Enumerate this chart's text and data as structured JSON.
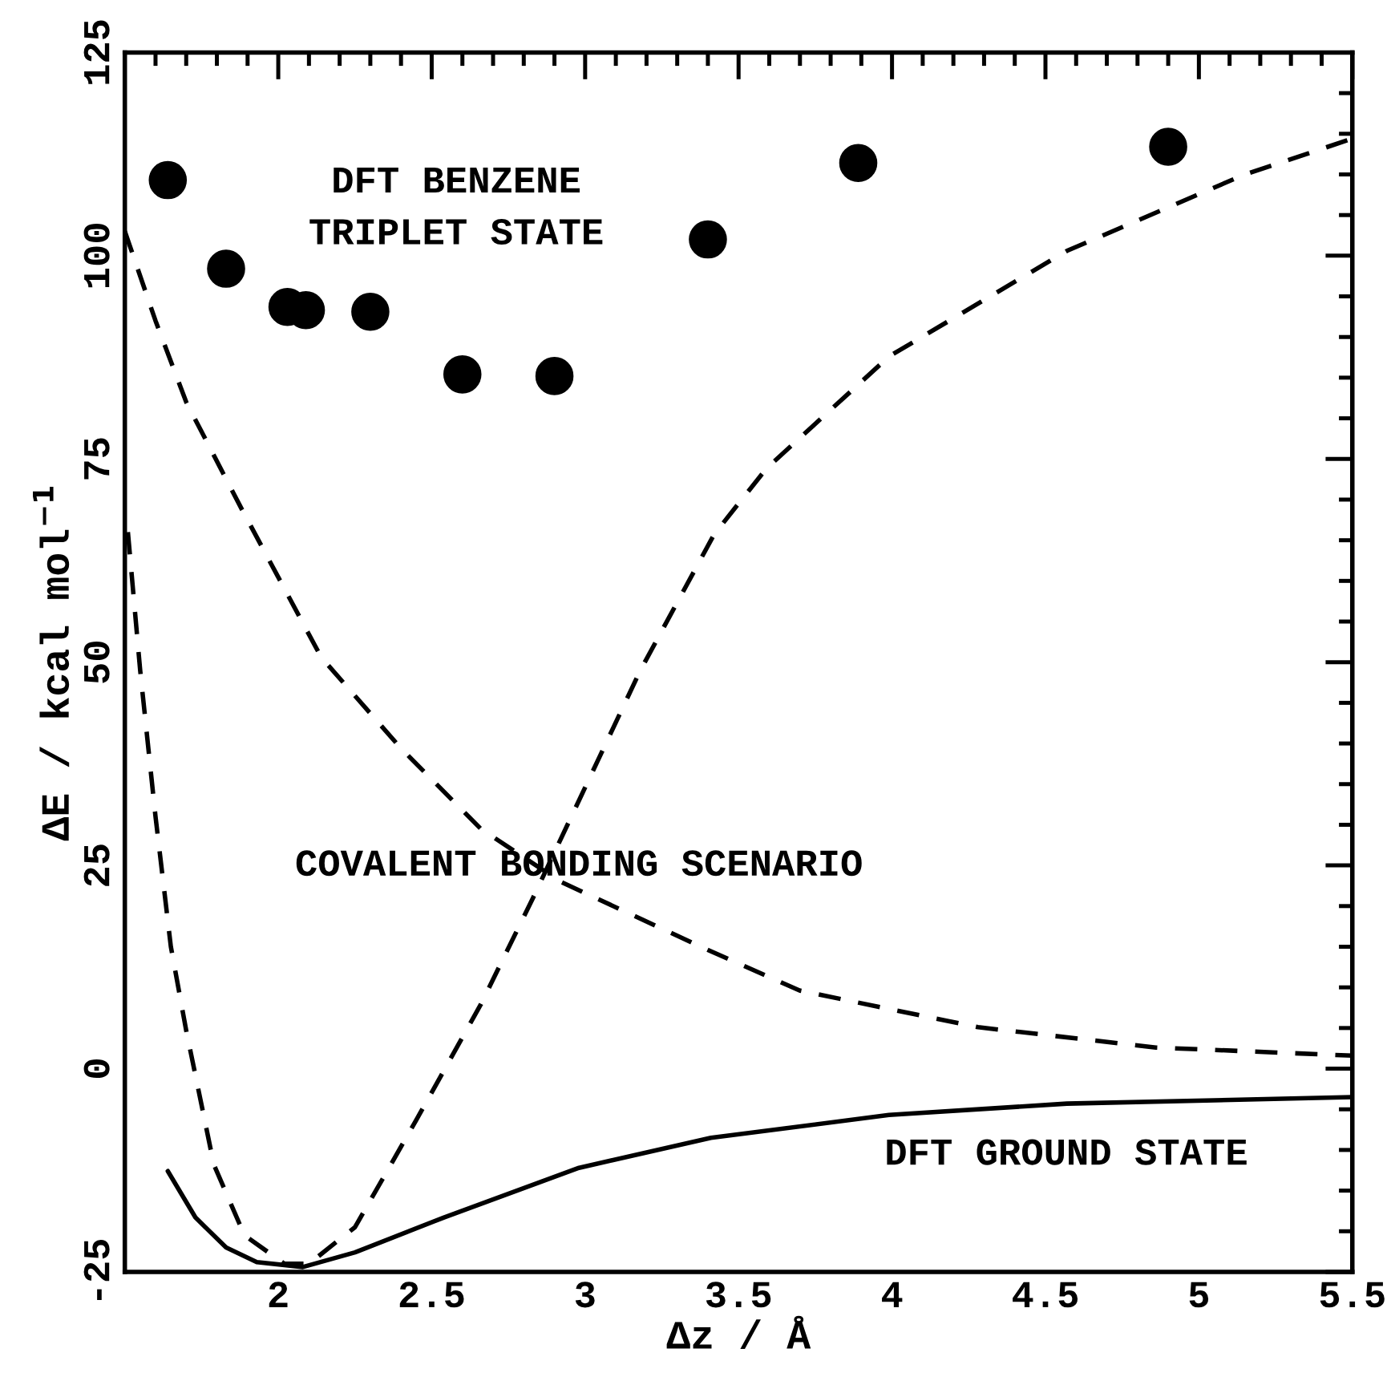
{
  "chart_data": {
    "type": "line",
    "xlabel": "Δz / Å",
    "ylabel": "ΔE / kcal mol$^{−1}$",
    "annotations": [
      "DFT BENZENE\nTRIPLET STATE",
      "COVALENT BONDING SCENARIO",
      "DFT GROUND STATE"
    ],
    "xlim": [
      1.5,
      5.5
    ],
    "ylim": [
      -25,
      125
    ],
    "xticks": [
      {
        "value": 1.6,
        "label": null
      },
      {
        "value": 1.7,
        "label": null
      },
      {
        "value": 1.8,
        "label": null
      },
      {
        "value": 1.9,
        "label": null
      },
      2,
      {
        "value": 2.1,
        "label": null
      },
      {
        "value": 2.2,
        "label": null
      },
      {
        "value": 2.3,
        "label": null
      },
      {
        "value": 2.4,
        "label": null
      },
      2.5,
      {
        "value": 2.6,
        "label": null
      },
      {
        "value": 2.7,
        "label": null
      },
      {
        "value": 2.8,
        "label": null
      },
      {
        "value": 2.9,
        "label": null
      },
      3,
      {
        "value": 3.1,
        "label": null
      },
      {
        "value": 3.2,
        "label": null
      },
      {
        "value": 3.3,
        "label": null
      },
      {
        "value": 3.4,
        "label": null
      },
      3.5,
      {
        "value": 3.6,
        "label": null
      },
      {
        "value": 3.7,
        "label": null
      },
      {
        "value": 3.8,
        "label": null
      },
      {
        "value": 3.9,
        "label": null
      },
      4,
      {
        "value": 4.1,
        "label": null
      },
      {
        "value": 4.2,
        "label": null
      },
      {
        "value": 4.3,
        "label": null
      },
      {
        "value": 4.4,
        "label": null
      },
      4.5,
      {
        "value": 4.6,
        "label": null
      },
      {
        "value": 4.7,
        "label": null
      },
      {
        "value": 4.8,
        "label": null
      },
      {
        "value": 4.9,
        "label": null
      },
      5,
      {
        "value": 5.1,
        "label": null
      },
      {
        "value": 5.2,
        "label": null
      },
      {
        "value": 5.3,
        "label": null
      },
      {
        "value": 5.4,
        "label": null
      },
      5.5
    ],
    "yticks": [
      -25,
      {
        "value": -20,
        "label": null
      },
      {
        "value": -15,
        "label": null
      },
      {
        "value": -10,
        "label": null
      },
      {
        "value": -5,
        "label": null
      },
      0,
      {
        "value": 5,
        "label": null
      },
      {
        "value": 10,
        "label": null
      },
      {
        "value": 15,
        "label": null
      },
      {
        "value": 20,
        "label": null
      },
      25,
      {
        "value": 30,
        "label": null
      },
      {
        "value": 35,
        "label": null
      },
      {
        "value": 40,
        "label": null
      },
      {
        "value": 45,
        "label": null
      },
      50,
      {
        "value": 55,
        "label": null
      },
      {
        "value": 60,
        "label": null
      },
      {
        "value": 65,
        "label": null
      },
      {
        "value": 70,
        "label": null
      },
      75,
      {
        "value": 80,
        "label": null
      },
      {
        "value": 85,
        "label": null
      },
      {
        "value": 90,
        "label": null
      },
      {
        "value": 95,
        "label": null
      },
      100,
      {
        "value": 105,
        "label": null
      },
      {
        "value": 110,
        "label": null
      },
      {
        "value": 115,
        "label": null
      },
      {
        "value": 120,
        "label": null
      },
      125
    ],
    "grid": false,
    "legend": false,
    "series": [
      {
        "type": "scatter",
        "marker": "circle",
        "color": "#000000",
        "x": [
          1.64,
          1.83,
          2.03,
          2.09,
          2.3,
          2.6,
          2.9,
          3.4,
          3.89,
          4.9
        ],
        "values": [
          109.3,
          98.4,
          93.7,
          93.3,
          93.1,
          85.4,
          85.2,
          102.0,
          111.4,
          113.4
        ]
      },
      {
        "line_style": "dashed",
        "color": "#000000",
        "x": [
          1.5,
          1.6,
          1.7,
          1.88,
          2.14,
          2.4,
          2.66,
          2.92,
          3.4,
          3.7,
          4.28,
          4.86,
          5.5
        ],
        "values": [
          103,
          92,
          82,
          68.9,
          50.6,
          39.4,
          29.5,
          23,
          14.6,
          9.6,
          5.1,
          2.6,
          1.6
        ]
      },
      {
        "line_style": "dashed",
        "color": "#000000",
        "x": [
          1.51,
          1.55,
          1.6,
          1.65,
          1.7,
          1.79,
          1.89,
          2.02,
          2.1,
          2.25,
          2.45,
          2.66,
          2.83,
          3.18,
          3.42,
          3.59,
          3.99,
          4.57,
          5.15,
          5.5
        ],
        "values": [
          66,
          49,
          31,
          15,
          4.7,
          -11.8,
          -20.5,
          -24,
          -24,
          -19.5,
          -6.3,
          7.9,
          21,
          49,
          65.7,
          73.8,
          87.6,
          100.6,
          110,
          114.4
        ]
      },
      {
        "line_style": "solid",
        "color": "#000000",
        "x": [
          1.64,
          1.73,
          1.83,
          1.93,
          2.08,
          2.25,
          2.54,
          2.98,
          3.41,
          3.99,
          4.57,
          5.5
        ],
        "values": [
          -12.6,
          -18.3,
          -22,
          -23.8,
          -24.4,
          -22.6,
          -18.3,
          -12.2,
          -8.5,
          -5.7,
          -4.3,
          -3.5
        ]
      }
    ]
  }
}
